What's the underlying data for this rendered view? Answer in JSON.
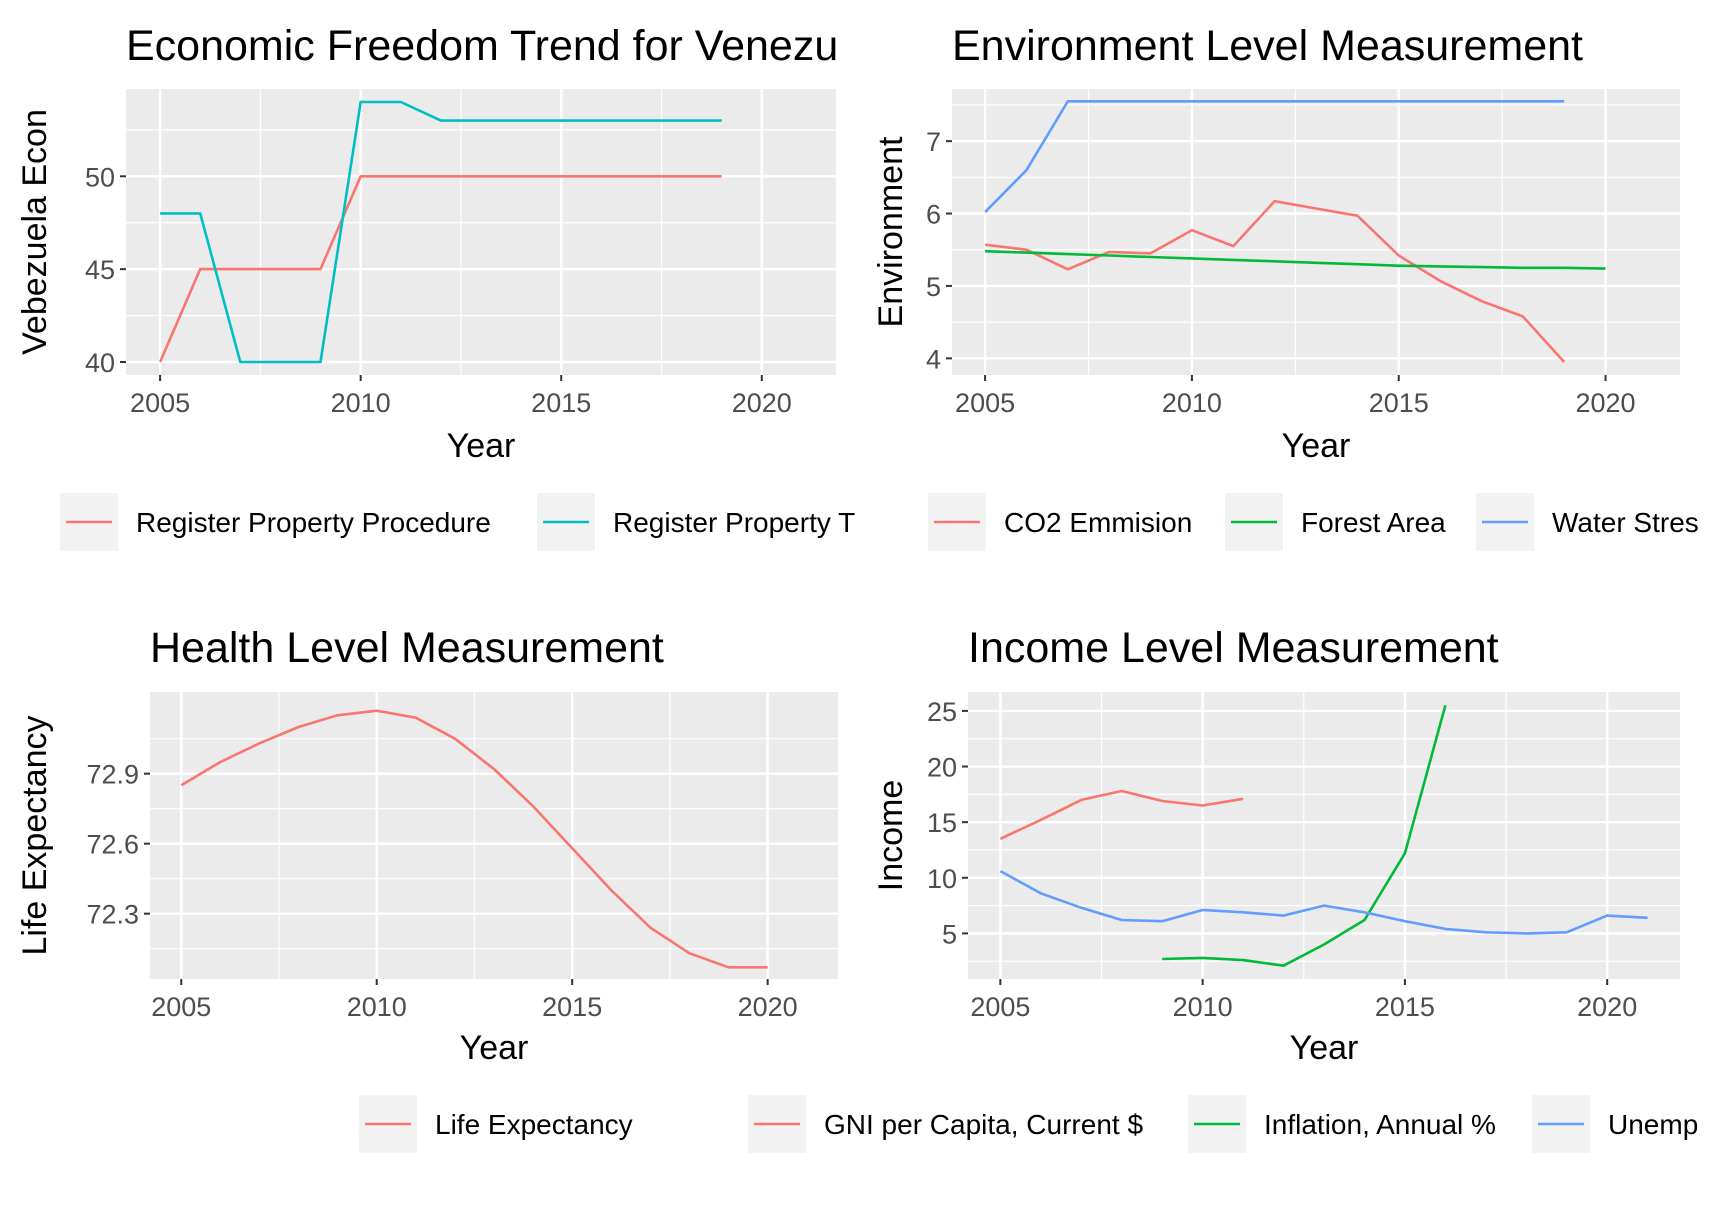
{
  "chart_data": [
    {
      "type": "line",
      "title": "Economic Freedom Trend for Venezu",
      "xlabel": "Year",
      "ylabel": "Vebezuela Econ",
      "xlim": [
        2004.15,
        2021.85
      ],
      "ylim": [
        39.3,
        54.7
      ],
      "xticks": [
        "2005",
        "2010",
        "2015",
        "2020"
      ],
      "yticks": [
        "40",
        "45",
        "50"
      ],
      "grid": true,
      "legend_position": "bottom",
      "series": [
        {
          "name": "Register Property Procedure",
          "color": "#F8766D",
          "x": [
            2005,
            2006,
            2007,
            2008,
            2009,
            2010,
            2011,
            2012,
            2013,
            2014,
            2015,
            2016,
            2017,
            2018,
            2019
          ],
          "y": [
            40,
            45,
            45,
            45,
            45,
            50,
            50,
            50,
            50,
            50,
            50,
            50,
            50,
            50,
            50
          ]
        },
        {
          "name": "Register Property T",
          "color": "#00BFC4",
          "x": [
            2005,
            2006,
            2007,
            2008,
            2009,
            2010,
            2011,
            2012,
            2013,
            2014,
            2015,
            2016,
            2017,
            2018,
            2019
          ],
          "y": [
            48,
            48,
            40,
            40,
            40,
            54,
            54,
            53,
            53,
            53,
            53,
            53,
            53,
            53,
            53
          ]
        }
      ]
    },
    {
      "type": "line",
      "title": "Environment Level Measurement",
      "xlabel": "Year",
      "ylabel": "Environment",
      "xlim": [
        2004.2,
        2021.8
      ],
      "ylim": [
        3.77,
        7.72
      ],
      "xticks": [
        "2005",
        "2010",
        "2015",
        "2020"
      ],
      "yticks": [
        "4",
        "5",
        "6",
        "7"
      ],
      "grid": true,
      "legend_position": "bottom",
      "series": [
        {
          "name": "CO2 Emmision",
          "color": "#F8766D",
          "x": [
            2005,
            2006,
            2007,
            2008,
            2009,
            2010,
            2011,
            2012,
            2013,
            2014,
            2015,
            2016,
            2017,
            2018,
            2019
          ],
          "y": [
            5.57,
            5.5,
            5.23,
            5.47,
            5.45,
            5.77,
            5.55,
            6.17,
            6.07,
            5.97,
            5.42,
            5.07,
            4.79,
            4.58,
            3.95
          ]
        },
        {
          "name": "Forest Area",
          "color": "#00BA38",
          "x": [
            2005,
            2006,
            2007,
            2008,
            2009,
            2010,
            2011,
            2012,
            2013,
            2014,
            2015,
            2016,
            2017,
            2018,
            2019,
            2020
          ],
          "y": [
            5.48,
            5.46,
            5.44,
            5.42,
            5.4,
            5.38,
            5.36,
            5.34,
            5.32,
            5.3,
            5.28,
            5.27,
            5.26,
            5.25,
            5.25,
            5.24
          ]
        },
        {
          "name": "Water Stres",
          "color": "#619CFF",
          "x": [
            2005,
            2006,
            2007,
            2008,
            2009,
            2010,
            2011,
            2012,
            2013,
            2014,
            2015,
            2016,
            2017,
            2018,
            2019
          ],
          "y": [
            6.02,
            6.6,
            7.55,
            7.55,
            7.55,
            7.55,
            7.55,
            7.55,
            7.55,
            7.55,
            7.55,
            7.55,
            7.55,
            7.55,
            7.55
          ]
        }
      ]
    },
    {
      "type": "line",
      "title": "Health Level Measurement",
      "xlabel": "Year",
      "ylabel": "Life Expectancy",
      "xlim": [
        2004.2,
        2021.8
      ],
      "ylim": [
        72.02,
        73.25
      ],
      "xticks": [
        "2005",
        "2010",
        "2015",
        "2020"
      ],
      "yticks": [
        "72.3",
        "72.6",
        "72.9"
      ],
      "grid": true,
      "legend_position": "bottom",
      "series": [
        {
          "name": "Life Expectancy",
          "color": "#F8766D",
          "x": [
            2005,
            2006,
            2007,
            2008,
            2009,
            2010,
            2011,
            2012,
            2013,
            2014,
            2015,
            2016,
            2017,
            2018,
            2019,
            2020
          ],
          "y": [
            72.85,
            72.95,
            73.03,
            73.1,
            73.15,
            73.17,
            73.14,
            73.05,
            72.92,
            72.76,
            72.58,
            72.4,
            72.24,
            72.13,
            72.07,
            72.07
          ]
        }
      ]
    },
    {
      "type": "line",
      "title": "Income Level Measurement",
      "xlabel": "Year",
      "ylabel": "Income",
      "xlim": [
        2004.2,
        2021.8
      ],
      "ylim": [
        0.9,
        26.7
      ],
      "xticks": [
        "2005",
        "2010",
        "2015",
        "2020"
      ],
      "yticks": [
        "5",
        "10",
        "15",
        "20",
        "25"
      ],
      "grid": true,
      "legend_position": "bottom",
      "series": [
        {
          "name": "GNI per Capita, Current $",
          "color": "#F8766D",
          "x": [
            2005,
            2006,
            2007,
            2008,
            2009,
            2010,
            2011
          ],
          "y": [
            13.5,
            15.2,
            17.0,
            17.8,
            16.9,
            16.5,
            17.1
          ]
        },
        {
          "name": "Inflation, Annual %",
          "color": "#00BA38",
          "x": [
            2009,
            2010,
            2011,
            2012,
            2013,
            2014,
            2015,
            2016
          ],
          "y": [
            2.7,
            2.8,
            2.6,
            2.1,
            4.0,
            6.2,
            12.2,
            25.5
          ]
        },
        {
          "name": "Unemp",
          "color": "#619CFF",
          "x": [
            2005,
            2006,
            2007,
            2008,
            2009,
            2010,
            2011,
            2012,
            2013,
            2014,
            2015,
            2016,
            2017,
            2018,
            2019,
            2020,
            2021
          ],
          "y": [
            10.6,
            8.6,
            7.3,
            6.2,
            6.1,
            7.1,
            6.9,
            6.6,
            7.5,
            6.9,
            6.1,
            5.4,
            5.1,
            5.0,
            5.1,
            6.6,
            6.4
          ]
        }
      ]
    }
  ]
}
